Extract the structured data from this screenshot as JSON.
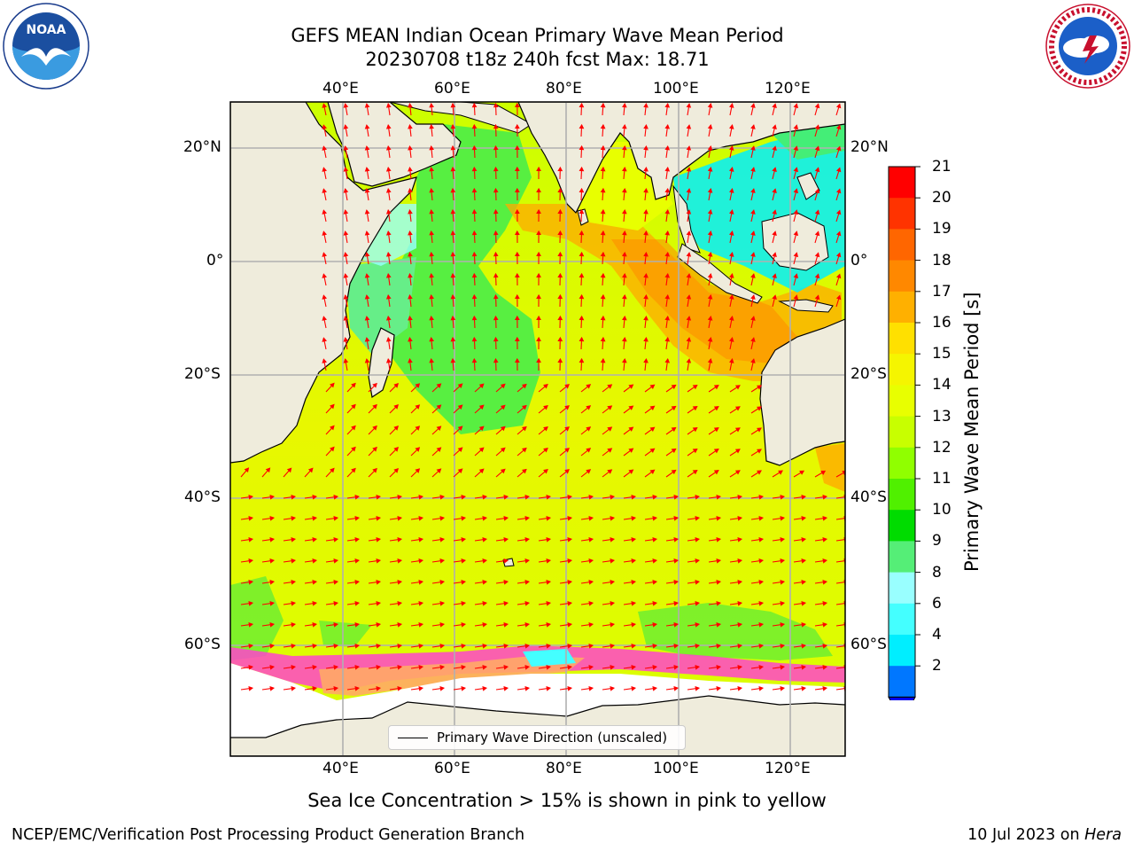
{
  "header": {
    "title_line1": "GEFS MEAN Indian Ocean Primary Wave Mean Period",
    "title_line2": "20230708 t18z 240h fcst   Max: 18.71"
  },
  "logos": {
    "left_name": "NOAA",
    "left_ring_text": "NATIONAL OCEANIC AND ATMOSPHERIC ADMINISTRATION · U.S. DEPARTMENT OF COMMERCE",
    "right_ring_text": "NATIONAL WEATHER SERVICE"
  },
  "map": {
    "lon_labels": [
      "40°E",
      "60°E",
      "80°E",
      "100°E",
      "120°E"
    ],
    "lat_labels": [
      "20°N",
      "0°",
      "20°S",
      "40°S",
      "60°S"
    ],
    "legend_label": "Primary Wave Direction (unscaled)",
    "colors": {
      "land": "#efecdc",
      "ice_free_land": "#ffffff",
      "arrow": "#ff0000",
      "grid": "#b0b0b0"
    }
  },
  "colorbar": {
    "label": "Primary Wave Mean Period [s]",
    "tick_labels": [
      "21",
      "20",
      "19",
      "18",
      "17",
      "16",
      "15",
      "14",
      "13",
      "12",
      "11",
      "10",
      "9",
      "8",
      "6",
      "4",
      "2"
    ],
    "colors": [
      "#ff0000",
      "#ff3300",
      "#ff6600",
      "#ff8800",
      "#ffb000",
      "#ffe000",
      "#f5f500",
      "#e8ff00",
      "#c8ff00",
      "#90ff00",
      "#50f000",
      "#00dc00",
      "#55ee77",
      "#99ffff",
      "#44ffff",
      "#00eeff",
      "#0077ff"
    ],
    "extend_color": "#0000ee"
  },
  "notes": {
    "ice_note": "Sea Ice Concentration > 15% is shown in pink to yellow",
    "credit": "NCEP/EMC/Verification Post Processing Product Generation Branch",
    "date": "10 Jul 2023 on ",
    "host": "Hera"
  }
}
